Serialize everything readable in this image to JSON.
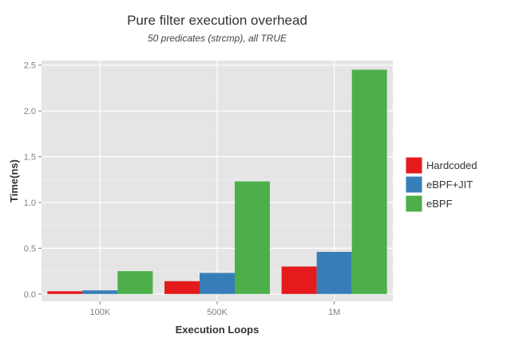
{
  "chart_data": {
    "type": "bar",
    "title": "Pure filter execution overhead",
    "subtitle": "50 predicates (strcmp), all TRUE",
    "xlabel": "Execution Loops",
    "ylabel": "Time(ns)",
    "categories": [
      "100K",
      "500K",
      "1M"
    ],
    "ylim": [
      -0.08,
      2.55
    ],
    "yticks": [
      0.0,
      0.5,
      1.0,
      1.5,
      2.0,
      2.5
    ],
    "ytick_labels": [
      "0.0",
      "0.5",
      "1.0",
      "1.5",
      "2.0",
      "2.5"
    ],
    "grid": true,
    "legend_position": "right",
    "series": [
      {
        "name": "Hardcoded",
        "color": "#e41a1c",
        "values": [
          0.03,
          0.14,
          0.3
        ]
      },
      {
        "name": "eBPF+JIT",
        "color": "#377eb8",
        "values": [
          0.04,
          0.23,
          0.46
        ]
      },
      {
        "name": "eBPF",
        "color": "#4daf4a",
        "values": [
          0.25,
          1.23,
          2.45
        ]
      }
    ]
  }
}
